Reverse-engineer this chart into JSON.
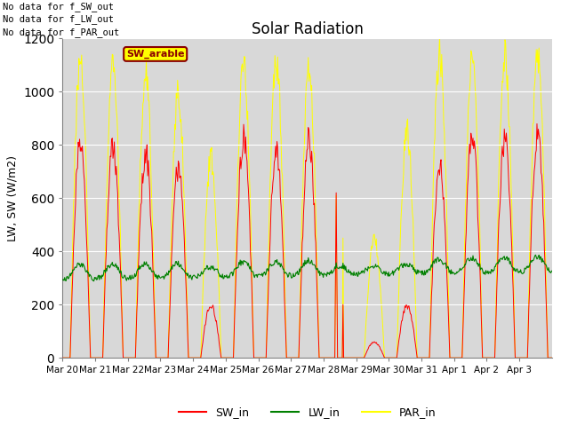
{
  "title": "Solar Radiation",
  "ylabel": "LW, SW (W/m2)",
  "ylim": [
    0,
    1200
  ],
  "yticks": [
    0,
    200,
    400,
    600,
    800,
    1000,
    1200
  ],
  "plot_bg_color": "#d8d8d8",
  "sw_color": "red",
  "lw_color": "green",
  "par_color": "yellow",
  "annotation_lines": [
    "No data for f_SW_out",
    "No data for f_LW_out",
    "No data for f_PAR_out"
  ],
  "legend_label_sw": "SW_in",
  "legend_label_lw": "LW_in",
  "legend_label_par": "PAR_in",
  "box_label": "SW_arable",
  "x_tick_labels": [
    "Mar 20",
    "Mar 21",
    "Mar 22",
    "Mar 23",
    "Mar 24",
    "Mar 25",
    "Mar 26",
    "Mar 27",
    "Mar 28",
    "Mar 29",
    "Mar 30",
    "Mar 31",
    "Apr 1",
    "Apr 2",
    "Apr 3"
  ],
  "n_days": 15,
  "figsize": [
    6.4,
    4.8
  ],
  "dpi": 100
}
